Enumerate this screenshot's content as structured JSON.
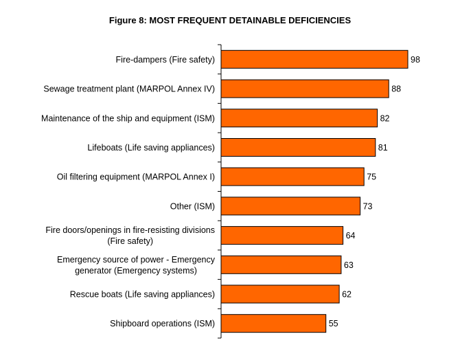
{
  "chart_data": {
    "type": "bar",
    "orientation": "horizontal",
    "title": "Figure 8: MOST FREQUENT DETAINABLE DEFICIENCIES",
    "categories": [
      [
        "Fire-dampers (Fire safety)"
      ],
      [
        "Sewage treatment plant (MARPOL Annex IV)"
      ],
      [
        "Maintenance of the ship and equipment (ISM)"
      ],
      [
        "Lifeboats (Life saving appliances)"
      ],
      [
        "Oil filtering equipment (MARPOL Annex I)"
      ],
      [
        "Other (ISM)"
      ],
      [
        "Fire doors/openings in fire-resisting divisions",
        "(Fire safety)"
      ],
      [
        "Emergency source of power - Emergency",
        "generator (Emergency systems)"
      ],
      [
        "Rescue boats (Life saving appliances)"
      ],
      [
        "Shipboard operations (ISM)"
      ]
    ],
    "values": [
      98,
      88,
      82,
      81,
      75,
      73,
      64,
      63,
      62,
      55
    ],
    "xlim": [
      0,
      100
    ],
    "grid": false,
    "bar_color": "#ff6600",
    "bar_edge_color": "#000000"
  }
}
